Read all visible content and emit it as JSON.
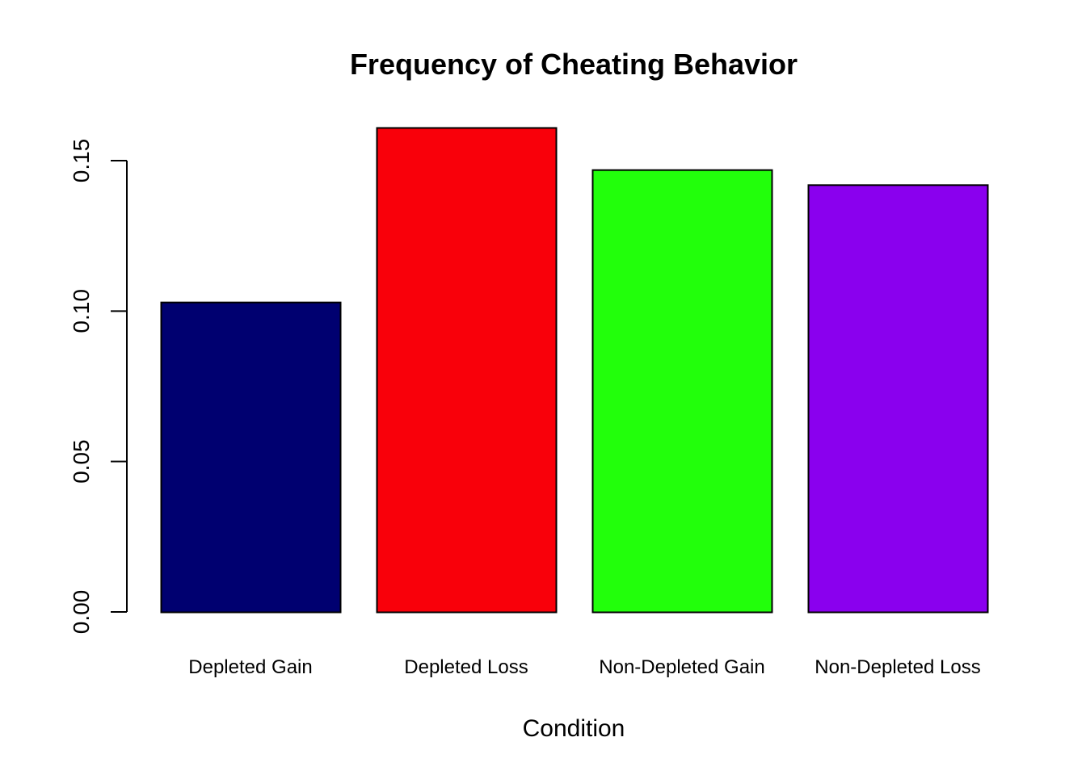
{
  "chart_data": {
    "type": "bar",
    "title": "Frequency of Cheating Behavior",
    "xlabel": "Condition",
    "ylabel": "",
    "categories": [
      "Depleted Gain",
      "Depleted Loss",
      "Non-Depleted Gain",
      "Non-Depleted Loss"
    ],
    "values": [
      0.103,
      0.161,
      0.147,
      0.142
    ],
    "colors": [
      "#000070",
      "#f9000a",
      "#22ff0b",
      "#8a00ee"
    ],
    "ylim": [
      0,
      0.15
    ],
    "yticks": [
      0.0,
      0.05,
      0.1,
      0.15
    ],
    "ytick_labels": [
      "0.00",
      "0.05",
      "0.10",
      "0.15"
    ],
    "grid": false,
    "legend": "none"
  }
}
